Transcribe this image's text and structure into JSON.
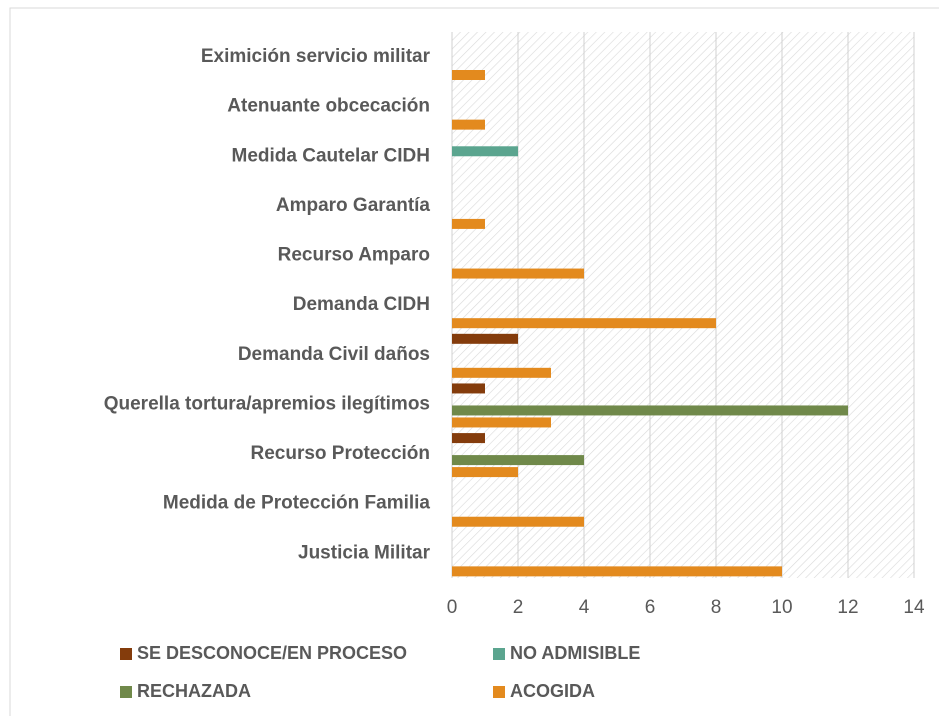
{
  "chart_data": {
    "type": "hbar",
    "categories": [
      "Eximición servicio militar",
      "Atenuante obcecación",
      "Medida Cautelar CIDH",
      "Amparo Garantía",
      "Recurso Amparo",
      "Demanda CIDH",
      "Demanda Civil daños",
      "Querella tortura/apremios ilegítimos",
      "Recurso Protección",
      "Medida de Protección Familia",
      "Justicia Militar"
    ],
    "series": [
      {
        "name": "SE DESCONOCE/EN PROCESO",
        "color": "#843c0c",
        "values": [
          null,
          null,
          null,
          null,
          null,
          null,
          2,
          1,
          1,
          null,
          null
        ]
      },
      {
        "name": "NO ADMISIBLE",
        "color": "#5ba58f",
        "values": [
          null,
          null,
          2,
          null,
          null,
          null,
          null,
          null,
          null,
          null,
          null
        ]
      },
      {
        "name": "RECHAZADA",
        "color": "#70894a",
        "values": [
          null,
          null,
          null,
          null,
          null,
          null,
          null,
          12,
          4,
          null,
          null
        ]
      },
      {
        "name": "ACOGIDA",
        "color": "#e38a1e",
        "values": [
          1,
          1,
          null,
          1,
          4,
          8,
          3,
          3,
          2,
          4,
          10
        ]
      }
    ],
    "xlim": [
      0,
      14
    ],
    "xticks": [
      0,
      2,
      4,
      6,
      8,
      10,
      12,
      14
    ],
    "grid": true
  }
}
